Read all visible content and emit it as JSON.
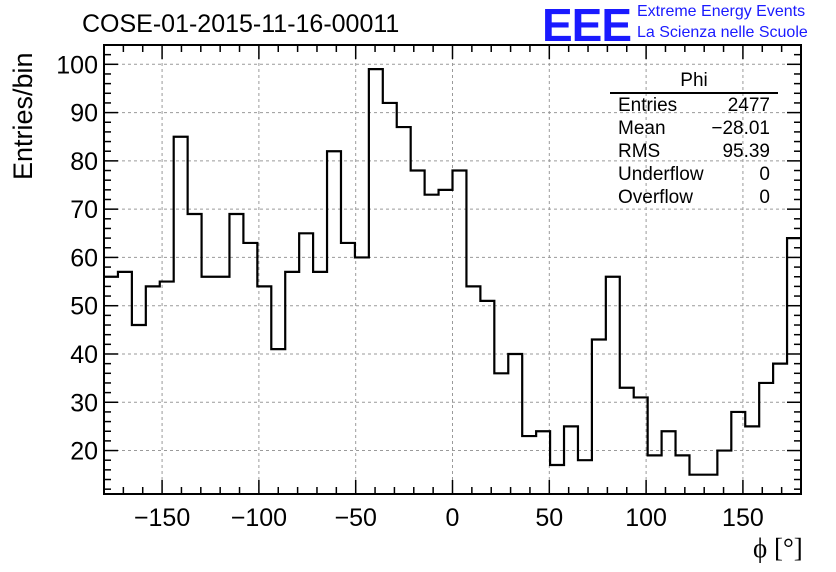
{
  "title": "COSE-01-2015-11-16-00011",
  "logo": {
    "mark": "EEE",
    "line1": "Extreme Energy Events",
    "line2": "La Scienza nelle Scuole",
    "color": "#1a1aff"
  },
  "stats": {
    "name": "Phi",
    "rows": [
      {
        "label": "Entries",
        "value": "2477"
      },
      {
        "label": "Mean",
        "value": "−28.01"
      },
      {
        "label": "RMS",
        "value": "95.39"
      },
      {
        "label": "Underflow",
        "value": "0"
      },
      {
        "label": "Overflow",
        "value": "0"
      }
    ]
  },
  "chart_data": {
    "type": "histogram",
    "title": "COSE-01-2015-11-16-00011",
    "xlabel": "ϕ [°]",
    "ylabel": "Entries/bin",
    "xlim": [
      -180,
      180
    ],
    "ylim": [
      11,
      104
    ],
    "bin_width": 7.2,
    "x_ticks": [
      -150,
      -100,
      -50,
      0,
      50,
      100,
      150
    ],
    "x_tick_labels": [
      "−150",
      "−100",
      "−50",
      "0",
      "50",
      "100",
      "150"
    ],
    "y_ticks": [
      20,
      30,
      40,
      50,
      60,
      70,
      80,
      90,
      100
    ],
    "grid": true,
    "counts": [
      56,
      57,
      46,
      54,
      55,
      85,
      69,
      56,
      56,
      69,
      63,
      54,
      41,
      57,
      65,
      57,
      82,
      63,
      60,
      99,
      92,
      87,
      78,
      73,
      74,
      78,
      54,
      51,
      36,
      40,
      23,
      24,
      17,
      25,
      18,
      43,
      56,
      33,
      31,
      19,
      24,
      19,
      15,
      15,
      20,
      28,
      25,
      34,
      38,
      64
    ]
  }
}
